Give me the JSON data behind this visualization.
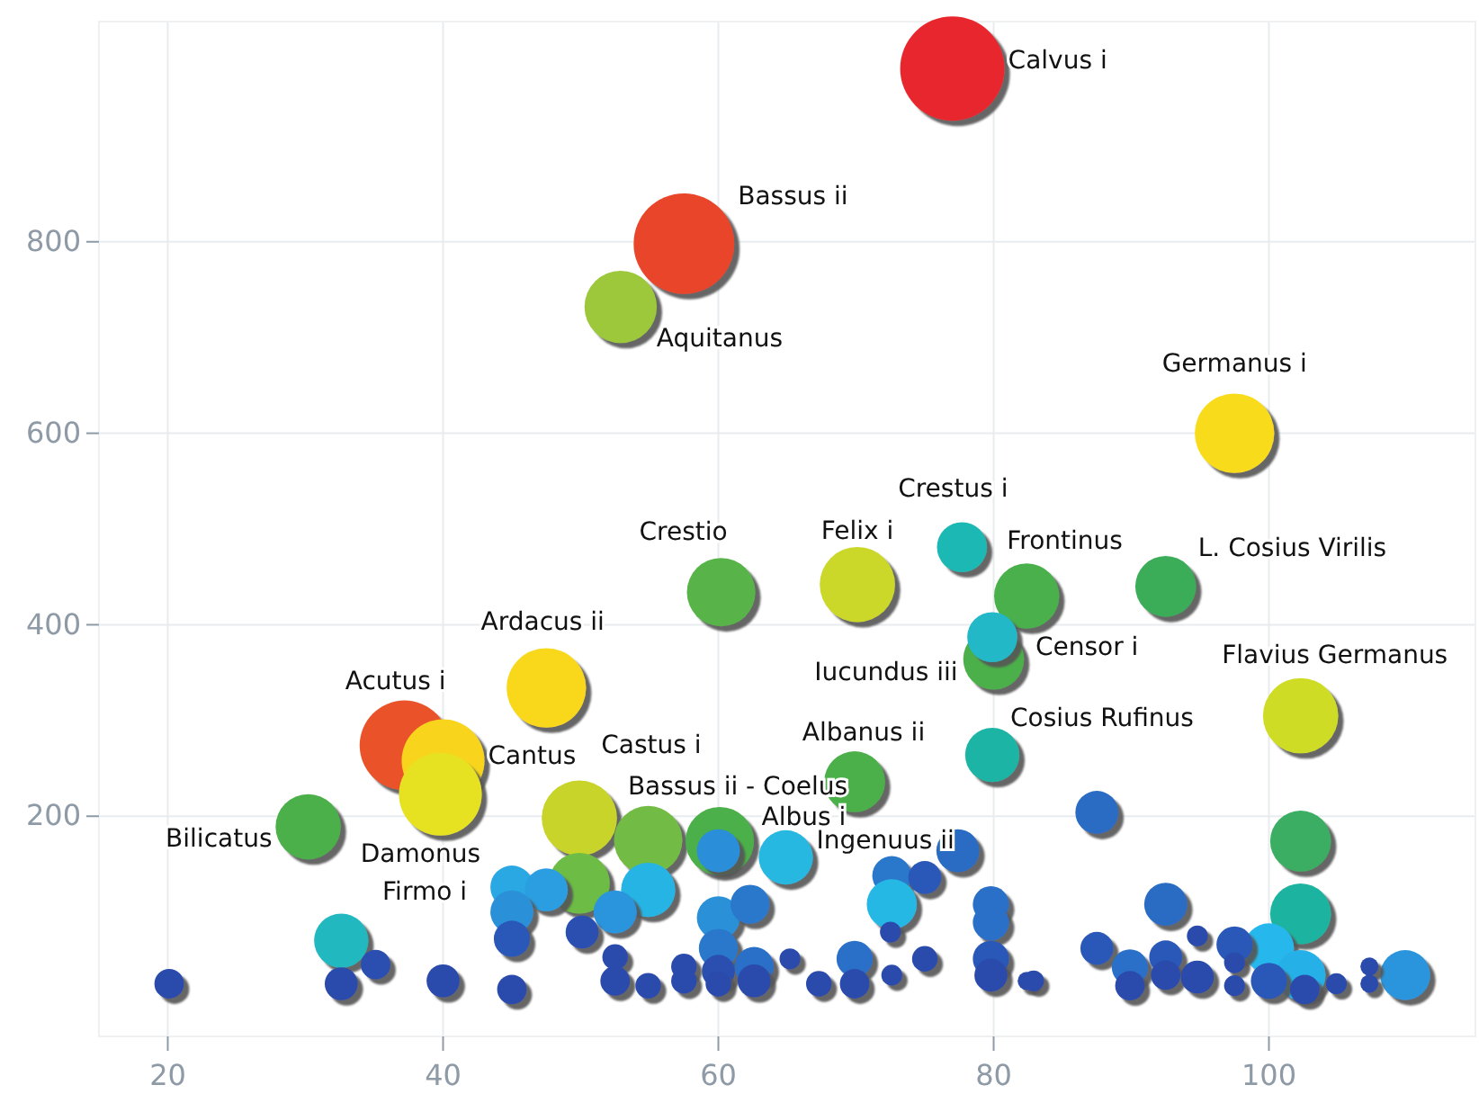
{
  "chart_data": {
    "type": "bubble",
    "xlim": [
      15,
      115
    ],
    "ylim": [
      -30,
      1030
    ],
    "xticks": [
      20,
      40,
      60,
      80,
      100
    ],
    "yticks": [
      200,
      400,
      600,
      800
    ],
    "grid": true,
    "x": [
      77,
      57.5,
      97.5,
      52.9,
      37.2,
      40,
      39.8,
      47.5,
      70.1,
      102.3,
      60.2,
      82.4,
      92.5,
      49.9,
      54.9,
      60.1,
      30.2,
      69.9,
      102.3,
      102.3,
      79.9,
      80,
      79.9,
      77.7,
      49.9,
      32.6,
      64.9,
      54.9,
      45,
      47.5,
      45,
      77.4,
      60,
      87.5,
      92.5,
      100,
      102.3,
      109.9,
      52.5,
      60,
      62.3,
      72.6,
      75,
      72.6,
      79.8,
      79.8,
      45,
      50.1,
      35.1,
      20.1,
      32.6,
      40,
      45,
      60,
      60,
      62.6,
      65.2,
      52.5,
      52.5,
      54.9,
      57.5,
      57.5,
      60,
      62.6,
      67.3,
      69.9,
      69.9,
      72.6,
      75,
      79.8,
      79.8,
      82.4,
      72.5,
      87.5,
      89.9,
      89.9,
      92.5,
      92.5,
      94.8,
      94.8,
      97.5,
      97.5,
      97.5,
      100,
      102.6,
      104.9,
      107.3,
      107.3,
      82.9
    ],
    "values": [
      981,
      798,
      600,
      732,
      274,
      258,
      223,
      334,
      442,
      305,
      434,
      430,
      440,
      198,
      175,
      174,
      189,
      236,
      174,
      98,
      264,
      364,
      387,
      481,
      130,
      70,
      157,
      123,
      126,
      123,
      100,
      164,
      164,
      204,
      108,
      62,
      34,
      34,
      100,
      94,
      108,
      138,
      136,
      108,
      108,
      89,
      72,
      79,
      45,
      25,
      25,
      28,
      19,
      62,
      38,
      43,
      51,
      53,
      28,
      23,
      43,
      28,
      25,
      28,
      25,
      51,
      25,
      34,
      51,
      51,
      34,
      28,
      79,
      62,
      42,
      23,
      53,
      34,
      32,
      75,
      66,
      47,
      23,
      28,
      19,
      25,
      43,
      25,
      28
    ],
    "sizes": [
      1,
      0.93,
      0.58,
      0.48,
      0.74,
      0.63,
      0.63,
      0.58,
      0.52,
      0.52,
      0.43,
      0.39,
      0.34,
      0.52,
      0.43,
      0.43,
      0.39,
      0.34,
      0.34,
      0.34,
      0.27,
      0.34,
      0.23,
      0.23,
      0.34,
      0.27,
      0.27,
      0.27,
      0.17,
      0.17,
      0.17,
      0.17,
      0.17,
      0.17,
      0.17,
      0.23,
      0.23,
      0.23,
      0.17,
      0.17,
      0.14,
      0.14,
      0.1,
      0.23,
      0.12,
      0.12,
      0.12,
      0.1,
      0.08,
      0.08,
      0.1,
      0.1,
      0.08,
      0.14,
      0.1,
      0.14,
      0.04,
      0.06,
      0.08,
      0.06,
      0.06,
      0.06,
      0.06,
      0.1,
      0.06,
      0.12,
      0.08,
      0.04,
      0.06,
      0.12,
      0.1,
      0.03,
      0.04,
      0.1,
      0.12,
      0.08,
      0.1,
      0.08,
      0.1,
      0.04,
      0.12,
      0.04,
      0.04,
      0.12,
      0.08,
      0.04,
      0.03,
      0.03,
      0.04
    ],
    "colors": [
      "#e8282e",
      "#e8452c",
      "#f8dc1e",
      "#9dc83a",
      "#ea532a",
      "#f8d41e",
      "#e6e224",
      "#f9d81e",
      "#cbd82a",
      "#cfdc28",
      "#58b448",
      "#48b04c",
      "#3aac58",
      "#c8d42c",
      "#72bc44",
      "#4cb04a",
      "#4cb04a",
      "#4cb04a",
      "#3aae64",
      "#1cb4a0",
      "#1fb4a4",
      "#4cb04a",
      "#20b8c8",
      "#1eb8b4",
      "#6cbc44",
      "#20b8c0",
      "#28b8e0",
      "#28b4e4",
      "#2aa8e4",
      "#2a9ee0",
      "#2a90d8",
      "#2a6cc4",
      "#2a8ed8",
      "#2a6cc4",
      "#2a6cc4",
      "#28b8ec",
      "#28b0e8",
      "#2a94dc",
      "#2a94dc",
      "#2a90d8",
      "#2a78cc",
      "#2a78cc",
      "#2a58b8",
      "#28b8e4",
      "#2a70c8",
      "#2a70c8",
      "#2a58b8",
      "#2a50b0",
      "#2a50b0",
      "#2a4cac",
      "#2a4cac",
      "#2a4cac",
      "#2a4cac",
      "#2a78cc",
      "#2a50b0",
      "#2a70c8",
      "#2a4cac",
      "#2a4cac",
      "#2a4cac",
      "#2a4cac",
      "#2a4cac",
      "#2a4cac",
      "#2a4cac",
      "#2a4cac",
      "#2a4cac",
      "#2a70c8",
      "#2a4cac",
      "#2a4cac",
      "#2a4cac",
      "#2a58b8",
      "#2a4cac",
      "#2a4cac",
      "#2a4cac",
      "#2a58b8",
      "#2a70c8",
      "#2a4cac",
      "#2a58b8",
      "#2a4cac",
      "#2a4cac",
      "#2a4cac",
      "#2a58b8",
      "#2a4cac",
      "#2a4cac",
      "#2a58b8",
      "#2a4cac",
      "#2a4cac",
      "#2a4cac",
      "#2a4cac",
      "#2a4cac"
    ],
    "annotations": [
      {
        "text": "Calvus i",
        "x": 77,
        "y": 981
      },
      {
        "text": "Bassus ii",
        "x": 57.5,
        "y": 798
      },
      {
        "text": "Germanus i",
        "x": 97.5,
        "y": 600
      },
      {
        "text": "Aquitanus",
        "x": 52.9,
        "y": 732
      },
      {
        "text": "Acutus i",
        "x": 37.2,
        "y": 274
      },
      {
        "text": "Cantus",
        "x": 40,
        "y": 258
      },
      {
        "text": "Damonus",
        "x": 39.8,
        "y": 223
      },
      {
        "text": "Ardacus ii",
        "x": 47.5,
        "y": 334
      },
      {
        "text": "Felix i",
        "x": 70.1,
        "y": 442
      },
      {
        "text": "Flavius Germanus",
        "x": 102.3,
        "y": 305
      },
      {
        "text": "Crestio",
        "x": 60.2,
        "y": 434
      },
      {
        "text": "Frontinus",
        "x": 82.4,
        "y": 430
      },
      {
        "text": "L. Cosius Virilis",
        "x": 92.5,
        "y": 440
      },
      {
        "text": "Castus i",
        "x": 49.9,
        "y": 198
      },
      {
        "text": "Bassus ii - Coelus",
        "x": 60.1,
        "y": 174
      },
      {
        "text": "Bilicatus",
        "x": 30.2,
        "y": 189
      },
      {
        "text": "Albanus ii",
        "x": 69.9,
        "y": 236
      },
      {
        "text": "Cosius Rufinus",
        "x": 79.9,
        "y": 264
      },
      {
        "text": "Iucundus iii",
        "x": 80,
        "y": 364
      },
      {
        "text": "Censor i",
        "x": 79.9,
        "y": 387
      },
      {
        "text": "Crestus i",
        "x": 77.7,
        "y": 481
      },
      {
        "text": "Albus i",
        "x": 64.9,
        "y": 157
      },
      {
        "text": "Firmo i",
        "x": 45,
        "y": 126
      },
      {
        "text": "Ingenuus ii",
        "x": 77.4,
        "y": 164
      }
    ]
  }
}
